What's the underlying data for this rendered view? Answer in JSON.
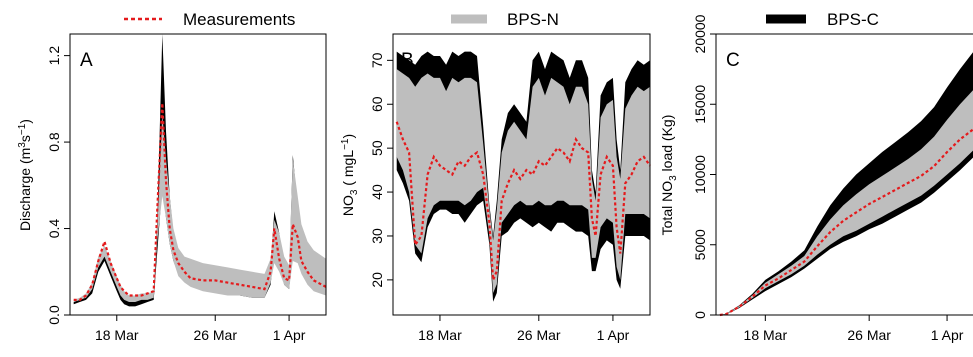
{
  "legend": {
    "measurements_label": "Measurements",
    "bps_n_label": "BPS-N",
    "bps_c_label": "BPS-C"
  },
  "colors": {
    "measurements": "#e41a1c",
    "bps_n": "#bebebe",
    "bps_c": "#000000",
    "axis": "#000000"
  },
  "chart_data": [
    {
      "type": "area",
      "panel_label": "A",
      "ylabel": "Discharge (m³s⁻¹)",
      "ylabel_parts": {
        "main": "Discharge (m",
        "sup1": "3",
        "mid": "s",
        "sup2": "−1",
        "end": ")"
      },
      "xlabel": "",
      "x_ticks": [
        "18 Mar",
        "26 Mar",
        "1 Apr"
      ],
      "x_tick_days": [
        18,
        26,
        32
      ],
      "y_ticks": [
        "0.0",
        "0.4",
        "0.8",
        "1.2"
      ],
      "xlim": [
        14.2,
        35.0
      ],
      "ylim": [
        0.0,
        1.3
      ],
      "grid": false,
      "series": [
        {
          "name": "BPS-C",
          "x": [
            14.5,
            15,
            15.5,
            16,
            16.5,
            17,
            17.5,
            18,
            18.3,
            18.6,
            19,
            19.5,
            20,
            20.5,
            21,
            21.3,
            21.7,
            22,
            22.3,
            22.6,
            23,
            23.5,
            24,
            25,
            26,
            27,
            28,
            29,
            30,
            30.5,
            30.8,
            31.2,
            31.6,
            32,
            32.3,
            32.7,
            33,
            33.5,
            34,
            35
          ],
          "upper": [
            0.06,
            0.07,
            0.09,
            0.14,
            0.26,
            0.31,
            0.24,
            0.17,
            0.13,
            0.1,
            0.08,
            0.08,
            0.09,
            0.09,
            0.1,
            0.45,
            1.3,
            0.85,
            0.55,
            0.38,
            0.28,
            0.24,
            0.22,
            0.2,
            0.19,
            0.17,
            0.16,
            0.14,
            0.13,
            0.22,
            0.48,
            0.38,
            0.22,
            0.18,
            0.74,
            0.5,
            0.36,
            0.28,
            0.25,
            0.22
          ],
          "lower": [
            0.05,
            0.06,
            0.07,
            0.1,
            0.2,
            0.25,
            0.18,
            0.11,
            0.07,
            0.05,
            0.04,
            0.04,
            0.05,
            0.06,
            0.07,
            0.3,
            0.6,
            0.45,
            0.33,
            0.25,
            0.19,
            0.16,
            0.14,
            0.12,
            0.11,
            0.1,
            0.09,
            0.08,
            0.08,
            0.14,
            0.3,
            0.24,
            0.14,
            0.12,
            0.3,
            0.26,
            0.2,
            0.16,
            0.12,
            0.1
          ]
        },
        {
          "name": "BPS-N",
          "x": [
            14.5,
            15,
            15.5,
            16,
            16.5,
            17,
            17.5,
            18,
            18.3,
            18.6,
            19,
            19.5,
            20,
            20.5,
            21,
            21.3,
            21.7,
            22,
            22.3,
            22.6,
            23,
            23.5,
            24,
            25,
            26,
            27,
            28,
            29,
            30,
            30.5,
            30.8,
            31.2,
            31.6,
            32,
            32.3,
            32.7,
            33,
            33.5,
            34,
            35
          ],
          "upper": [
            0.07,
            0.08,
            0.1,
            0.15,
            0.27,
            0.32,
            0.25,
            0.18,
            0.14,
            0.11,
            0.09,
            0.09,
            0.1,
            0.1,
            0.11,
            0.42,
            0.93,
            0.72,
            0.55,
            0.4,
            0.31,
            0.27,
            0.26,
            0.24,
            0.23,
            0.22,
            0.21,
            0.2,
            0.19,
            0.26,
            0.44,
            0.38,
            0.27,
            0.23,
            0.72,
            0.55,
            0.42,
            0.34,
            0.3,
            0.26
          ],
          "lower": [
            0.06,
            0.07,
            0.08,
            0.12,
            0.22,
            0.27,
            0.2,
            0.13,
            0.09,
            0.07,
            0.06,
            0.06,
            0.07,
            0.07,
            0.08,
            0.35,
            0.55,
            0.45,
            0.33,
            0.25,
            0.18,
            0.15,
            0.13,
            0.11,
            0.1,
            0.09,
            0.09,
            0.08,
            0.08,
            0.15,
            0.24,
            0.2,
            0.14,
            0.12,
            0.25,
            0.24,
            0.19,
            0.14,
            0.11,
            0.09
          ]
        },
        {
          "name": "Measurements",
          "x": [
            14.5,
            15,
            15.5,
            16,
            16.5,
            17,
            17.5,
            18,
            18.3,
            18.6,
            19,
            19.5,
            20,
            20.5,
            21,
            21.3,
            21.7,
            22,
            22.3,
            22.6,
            23,
            23.5,
            24,
            25,
            26,
            27,
            28,
            29,
            30,
            30.5,
            30.8,
            31.2,
            31.6,
            32,
            32.3,
            32.7,
            33,
            33.5,
            34,
            35
          ],
          "values": [
            0.07,
            0.07,
            0.09,
            0.14,
            0.25,
            0.34,
            0.24,
            0.17,
            0.13,
            0.11,
            0.09,
            0.09,
            0.09,
            0.1,
            0.11,
            0.5,
            0.98,
            0.62,
            0.4,
            0.3,
            0.24,
            0.2,
            0.17,
            0.16,
            0.16,
            0.15,
            0.14,
            0.13,
            0.12,
            0.2,
            0.4,
            0.26,
            0.17,
            0.16,
            0.42,
            0.36,
            0.25,
            0.2,
            0.16,
            0.13
          ]
        }
      ]
    },
    {
      "type": "area",
      "panel_label": "B",
      "ylabel": "NO₃ ( mgL⁻¹)",
      "ylabel_parts": {
        "main": "NO",
        "sub": "3",
        "mid": " ( mgL",
        "sup": "−1",
        "end": ")"
      },
      "xlabel": "",
      "x_ticks": [
        "18 Mar",
        "26 Mar",
        "1 Apr"
      ],
      "x_tick_days": [
        18,
        26,
        32
      ],
      "y_ticks": [
        "20",
        "30",
        "40",
        "50",
        "60",
        "70"
      ],
      "xlim": [
        14.2,
        35.0
      ],
      "ylim": [
        12,
        76
      ],
      "grid": false,
      "series": [
        {
          "name": "BPS-C",
          "x": [
            14.5,
            15,
            15.5,
            16,
            16.5,
            17,
            17.5,
            18,
            18.5,
            19,
            19.5,
            20,
            20.5,
            21,
            21.5,
            22,
            22.3,
            22.6,
            23,
            23.5,
            24,
            24.5,
            25,
            25.5,
            26,
            26.5,
            27,
            27.5,
            28,
            28.5,
            29,
            29.5,
            30,
            30.3,
            30.6,
            31,
            31.5,
            32,
            32.3,
            32.6,
            33,
            33.5,
            34,
            34.5,
            35
          ],
          "upper": [
            72,
            71,
            70,
            69,
            71,
            72,
            71,
            71,
            69,
            72,
            71,
            72,
            72,
            71,
            55,
            37,
            30,
            38,
            52,
            58,
            60,
            58,
            56,
            70,
            72,
            68,
            72,
            71,
            70,
            66,
            70,
            70,
            66,
            45,
            40,
            62,
            65,
            66,
            52,
            45,
            65,
            68,
            70,
            69,
            70
          ],
          "lower": [
            45,
            42,
            38,
            26,
            24,
            32,
            35,
            36,
            36,
            35,
            35,
            33,
            35,
            37,
            38,
            28,
            15,
            17,
            30,
            31,
            33,
            34,
            33,
            32,
            33,
            32,
            31,
            33,
            33,
            32,
            31,
            31,
            30,
            22,
            22,
            27,
            29,
            28,
            20,
            18,
            30,
            30,
            30,
            30,
            29
          ]
        },
        {
          "name": "BPS-N",
          "x": [
            14.5,
            15,
            15.5,
            16,
            16.5,
            17,
            17.5,
            18,
            18.5,
            19,
            19.5,
            20,
            20.5,
            21,
            21.5,
            22,
            22.3,
            22.6,
            23,
            23.5,
            24,
            24.5,
            25,
            25.5,
            26,
            26.5,
            27,
            27.5,
            28,
            28.5,
            29,
            29.5,
            30,
            30.3,
            30.6,
            31,
            31.5,
            32,
            32.3,
            32.6,
            33,
            33.5,
            34,
            34.5,
            35
          ],
          "upper": [
            68,
            67,
            66,
            64,
            66,
            67,
            66,
            66,
            63,
            66,
            65,
            66,
            66,
            65,
            51,
            36,
            29,
            36,
            49,
            54,
            56,
            54,
            52,
            64,
            66,
            62,
            66,
            65,
            64,
            60,
            64,
            64,
            60,
            43,
            38,
            57,
            60,
            61,
            48,
            43,
            59,
            62,
            64,
            63,
            64
          ],
          "lower": [
            48,
            45,
            40,
            28,
            26,
            34,
            37,
            38,
            38,
            38,
            38,
            37,
            38,
            40,
            41,
            30,
            17,
            19,
            33,
            35,
            37,
            38,
            37,
            37,
            38,
            37,
            37,
            38,
            38,
            37,
            37,
            37,
            36,
            25,
            25,
            32,
            34,
            33,
            23,
            20,
            35,
            35,
            35,
            35,
            34
          ]
        },
        {
          "name": "Measurements",
          "x": [
            14.5,
            15,
            15.5,
            16,
            16.5,
            17,
            17.5,
            18,
            18.5,
            19,
            19.5,
            20,
            20.5,
            21,
            21.5,
            22,
            22.3,
            22.6,
            23,
            23.5,
            24,
            24.5,
            25,
            25.5,
            26,
            26.5,
            27,
            27.5,
            28,
            28.5,
            29,
            29.5,
            30,
            30.3,
            30.6,
            31,
            31.5,
            32,
            32.3,
            32.6,
            33,
            33.5,
            34,
            34.5,
            35
          ],
          "values": [
            56,
            52,
            49,
            28,
            30,
            44,
            48,
            46,
            45,
            44,
            47,
            46,
            48,
            49,
            44,
            33,
            20,
            22,
            38,
            42,
            45,
            43,
            45,
            44,
            47,
            46,
            48,
            50,
            49,
            47,
            52,
            50,
            49,
            34,
            30,
            44,
            48,
            46,
            32,
            26,
            42,
            44,
            47,
            48,
            46
          ]
        }
      ]
    },
    {
      "type": "area",
      "panel_label": "C",
      "ylabel": "Total NO₃ load (Kg)",
      "ylabel_parts": {
        "main": "Total NO",
        "sub": "3",
        "end": " load (Kg)"
      },
      "xlabel": "",
      "x_ticks": [
        "18 Mar",
        "26 Mar",
        "1 Apr"
      ],
      "x_tick_days": [
        18,
        26,
        32
      ],
      "y_ticks": [
        "0",
        "5000",
        "10000",
        "15000",
        "20000"
      ],
      "xlim": [
        14.2,
        35.0
      ],
      "ylim": [
        0,
        20000
      ],
      "grid": false,
      "series": [
        {
          "name": "BPS-C",
          "x": [
            14.5,
            15,
            16,
            17,
            18,
            19,
            20,
            21,
            22,
            23,
            24,
            25,
            26,
            27,
            28,
            29,
            30,
            31,
            32,
            33,
            34,
            35
          ],
          "upper": [
            0,
            100,
            700,
            1500,
            2500,
            3100,
            3800,
            4600,
            6300,
            7800,
            9000,
            10000,
            10800,
            11600,
            12300,
            13000,
            13800,
            14800,
            16200,
            17500,
            18700,
            19600
          ],
          "lower": [
            0,
            50,
            500,
            1100,
            1700,
            2200,
            2700,
            3300,
            4000,
            4700,
            5200,
            5600,
            6100,
            6500,
            7000,
            7500,
            8000,
            8700,
            9500,
            10300,
            11200,
            12000
          ]
        },
        {
          "name": "BPS-N",
          "x": [
            14.5,
            15,
            16,
            17,
            18,
            19,
            20,
            21,
            22,
            23,
            24,
            25,
            26,
            27,
            28,
            29,
            30,
            31,
            32,
            33,
            34,
            35
          ],
          "upper": [
            0,
            80,
            650,
            1400,
            2300,
            2900,
            3500,
            4200,
            5600,
            6800,
            7800,
            8600,
            9300,
            9900,
            10500,
            11100,
            11800,
            12700,
            13900,
            15000,
            16000,
            16900
          ],
          "lower": [
            0,
            60,
            550,
            1200,
            1900,
            2400,
            2900,
            3500,
            4300,
            5000,
            5600,
            6000,
            6500,
            7000,
            7500,
            8000,
            8500,
            9200,
            10000,
            10800,
            11700,
            12500
          ]
        },
        {
          "name": "Measurements",
          "x": [
            14.5,
            15,
            16,
            17,
            18,
            19,
            20,
            21,
            22,
            23,
            24,
            25,
            26,
            27,
            28,
            29,
            30,
            31,
            32,
            33,
            34,
            35
          ],
          "values": [
            0,
            70,
            600,
            1300,
            2100,
            2600,
            3200,
            3800,
            4900,
            5900,
            6700,
            7300,
            7900,
            8400,
            8900,
            9400,
            9900,
            10600,
            11600,
            12500,
            13200,
            13900
          ]
        }
      ]
    }
  ]
}
